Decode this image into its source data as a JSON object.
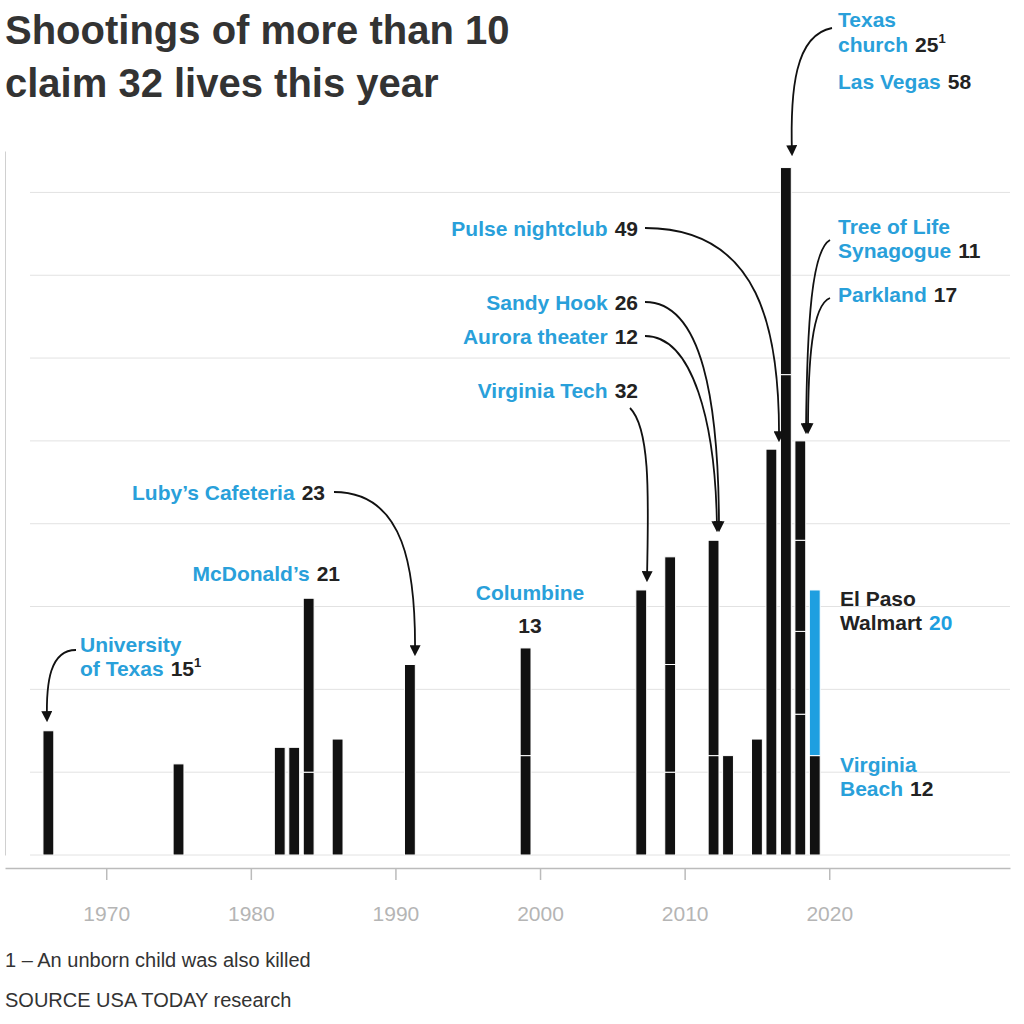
{
  "chart_data": {
    "type": "bar",
    "title": [
      "Shootings of more than 10",
      "claim 32 lives this year"
    ],
    "stacked": true,
    "grid": true,
    "tick_labels": "x",
    "color": "#111111",
    "x": [
      1966,
      1975,
      1982,
      1983,
      1984,
      1986,
      1991,
      1999,
      2007,
      2009,
      2012,
      2013,
      2015,
      2016,
      2017,
      2018,
      2019
    ],
    "series": [
      {
        "values": [
          15,
          11,
          13,
          13,
          10,
          14,
          23,
          12,
          32,
          10,
          12,
          12,
          14,
          49,
          58,
          17,
          12
        ]
      },
      {
        "values": [
          null,
          null,
          null,
          null,
          21,
          null,
          null,
          13,
          null,
          13,
          26,
          null,
          null,
          null,
          25,
          10,
          20
        ],
        "colors": [
          "#111111",
          "#111111",
          "#111111",
          "#111111",
          "#111111",
          "#111111",
          "#111111",
          "#111111",
          "#111111",
          "#111111",
          "#111111",
          "#111111",
          "#111111",
          "#111111",
          "#111111",
          "#111111",
          "#1e9fe0"
        ]
      },
      {
        "values": [
          null,
          null,
          null,
          null,
          null,
          null,
          null,
          null,
          null,
          13,
          null,
          null,
          null,
          null,
          null,
          11,
          null
        ]
      },
      {
        "values": [
          null,
          null,
          null,
          null,
          null,
          null,
          null,
          null,
          null,
          null,
          null,
          null,
          null,
          null,
          null,
          12,
          null
        ]
      }
    ],
    "xlim": [
      1963,
      2032.5
    ],
    "xticks": [
      1970,
      1980,
      1990,
      2000,
      2010,
      2020
    ],
    "ylim": [
      0,
      85
    ],
    "yticks": [
      0,
      10,
      20,
      30,
      40,
      50,
      60,
      70,
      80
    ],
    "annotations": [
      {
        "lines": [
          "University",
          "of Texas"
        ],
        "x": 1966,
        "series": 0,
        "note": "1"
      },
      {
        "lines": [
          "McDonald’s"
        ],
        "x": 1984,
        "series": 1
      },
      {
        "lines": [
          "Luby’s Cafeteria"
        ],
        "x": 1991,
        "series": 0
      },
      {
        "lines": [
          "Columbine"
        ],
        "x": 1999,
        "series": 1
      },
      {
        "lines": [
          "Virginia Tech"
        ],
        "x": 2007,
        "series": 0
      },
      {
        "lines": [
          "Sandy Hook"
        ],
        "x": 2012,
        "series": 1
      },
      {
        "lines": [
          "Aurora theater"
        ],
        "x": 2012,
        "series": 0
      },
      {
        "lines": [
          "Pulse nightclub"
        ],
        "x": 2016,
        "series": 0
      },
      {
        "lines": [
          "Texas",
          "church"
        ],
        "x": 2017,
        "series": 1,
        "note": "1"
      },
      {
        "lines": [
          "Las Vegas"
        ],
        "x": 2017,
        "series": 0
      },
      {
        "lines": [
          "Tree of Life",
          "Synagogue"
        ],
        "x": 2018,
        "series": 2
      },
      {
        "lines": [
          "Parkland"
        ],
        "x": 2018,
        "series": 0
      },
      {
        "lines": [
          "El Paso",
          "Walmart"
        ],
        "x": 2019,
        "series": 1
      },
      {
        "lines": [
          "Virginia",
          "Beach"
        ],
        "x": 2019,
        "series": 0
      }
    ],
    "footnote": "1 – An unborn child was also killed",
    "source": "SOURCE USA TODAY research"
  }
}
